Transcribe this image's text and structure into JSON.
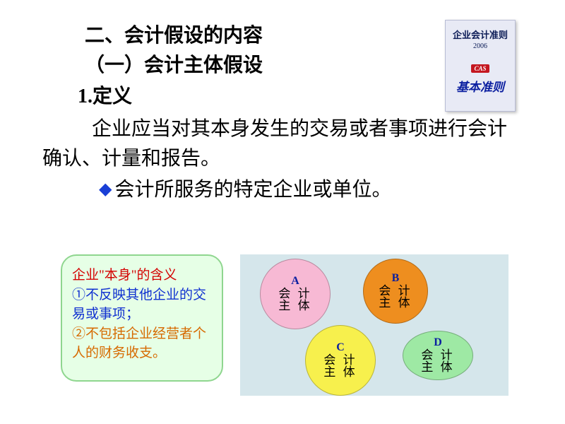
{
  "heading": "二、会计假设的内容",
  "subheading": "（一）会计主体假设",
  "def_label": "1.定义",
  "body": "企业应当对其本身发生的交易或者事项进行会计确认、计量和报告。",
  "bullet": "会计所服务的特定企业或单位。",
  "book": {
    "title": "企业会计准则",
    "year": "2006",
    "logo": "CAS",
    "bottom": "基本准则"
  },
  "green_box": {
    "title": "企业\"本身\"的含义",
    "num1": "①",
    "line1": "不反映其他企业的交易或事项；",
    "num2": "②",
    "line2": "不包括企业经营者个人的财务收支。"
  },
  "diagram": {
    "label1": "会 计",
    "label2": "主 体",
    "circles": {
      "A": "A",
      "B": "B",
      "C": "C",
      "D": "D"
    }
  },
  "colors": {
    "diamond": "#1a3fd6",
    "green_border": "#8fd68f",
    "green_bg": "#e6ffe6",
    "diagram_bg": "#d5e6eb",
    "pink": "#f7b9d4",
    "orange": "#ee8e1f",
    "yellow": "#f7f04d",
    "green": "#9ee9a4"
  }
}
